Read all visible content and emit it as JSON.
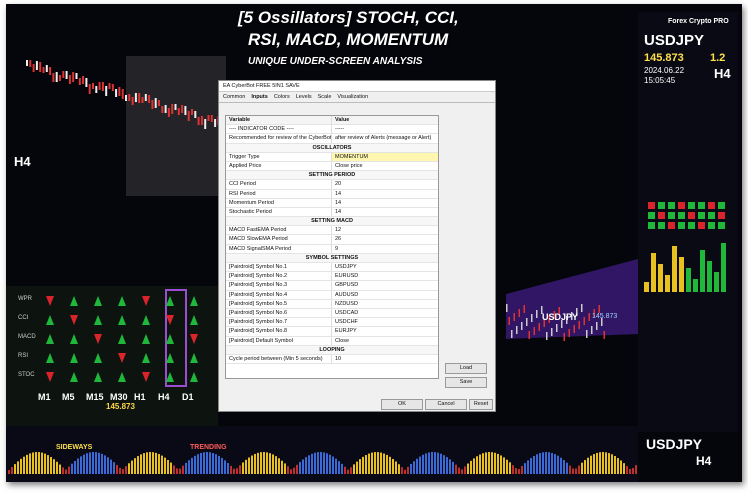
{
  "header": {
    "title_line1": "[5 Ossillators] STOCH, CCI,",
    "title_line2": "RSI, MACD, MOMENTUM",
    "subtitle": "UNIQUE UNDER-SCREEN ANALYSIS"
  },
  "dialog": {
    "title": "EA CyberBot FREE 5IN1 SAVE",
    "tabs": [
      "Common",
      "Inputs",
      "Colors",
      "Levels",
      "Scale",
      "Visualization"
    ],
    "columns": [
      "Variable",
      "Value"
    ],
    "rows": [
      {
        "label": "---- INDICATOR CODE ----",
        "value": "-----"
      },
      {
        "label": "Recommended for review of the CyberBot",
        "value": "after review of Alerts (message or Alert)"
      },
      {
        "section": "OSCILLATORS"
      },
      {
        "label": "Trigger Type",
        "value": "MOMENTUM"
      },
      {
        "label": "Applied Price",
        "value": "Close price"
      },
      {
        "section": "SETTING PERIOD"
      },
      {
        "label": "CCI Period",
        "value": "20"
      },
      {
        "label": "RSI Period",
        "value": "14"
      },
      {
        "label": "Momentum Period",
        "value": "14"
      },
      {
        "label": "Stochastic Period",
        "value": "14"
      },
      {
        "section": "SETTING MACD"
      },
      {
        "label": "MACD FastEMA Period",
        "value": "12"
      },
      {
        "label": "MACD SlowEMA Period",
        "value": "26"
      },
      {
        "label": "MACD SignalSMA Period",
        "value": "9"
      },
      {
        "section": "SYMBOL SETTINGS"
      },
      {
        "label": "[Pairdroid] Symbol No.1",
        "value": "USDJPY"
      },
      {
        "label": "[Pairdroid] Symbol No.2",
        "value": "EURUSD"
      },
      {
        "label": "[Pairdroid] Symbol No.3",
        "value": "GBPUSD"
      },
      {
        "label": "[Pairdroid] Symbol No.4",
        "value": "AUDUSD"
      },
      {
        "label": "[Pairdroid] Symbol No.5",
        "value": "NZDUSD"
      },
      {
        "label": "[Pairdroid] Symbol No.6",
        "value": "USDCAD"
      },
      {
        "label": "[Pairdroid] Symbol No.7",
        "value": "USDCHF"
      },
      {
        "label": "[Pairdroid] Symbol No.8",
        "value": "EURJPY"
      },
      {
        "label": "[Pairdroid] Default Symbol",
        "value": "Close"
      },
      {
        "section": "LOOPING"
      },
      {
        "label": "Cycle period between (Min 5 seconds)",
        "value": "10"
      }
    ],
    "buttons": {
      "load": "Load",
      "save": "Save",
      "ok": "OK",
      "cancel": "Cancel",
      "reset": "Reset"
    }
  },
  "right_panel": {
    "brand": "Forex Crypto PRO",
    "symbol": "USDJPY",
    "price": "145.873",
    "spread": "1.2",
    "date": "2024.06.22",
    "time": "15:05:45",
    "timeframe": "H4"
  },
  "left_panel": {
    "timeframe": "H4",
    "oscillators": [
      "WPR",
      "CCI",
      "MACD",
      "RSI",
      "STOC"
    ],
    "timeframes": [
      "M1",
      "M5",
      "M15",
      "M30",
      "H1",
      "H4",
      "D1"
    ],
    "price": "145.873"
  },
  "chart": {
    "price_label": "USDJPY",
    "price": "145.873"
  },
  "bottom": {
    "sideways": "SIDEWAYS",
    "trending": "TRENDING",
    "symbol": "USDJPY",
    "timeframe": "H4"
  }
}
